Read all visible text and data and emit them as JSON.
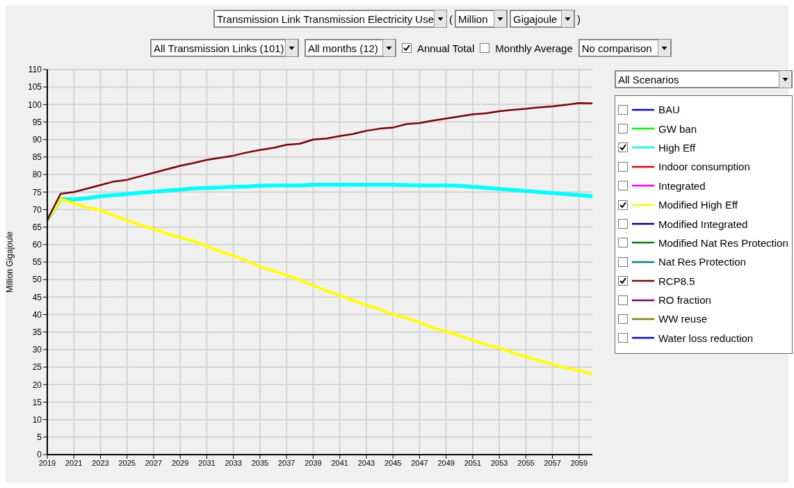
{
  "chart_data": {
    "type": "line",
    "title": "Transmission Link Transmission Electricity Use",
    "ylabel": "Million Gigajoule",
    "annotations": [
      "(",
      "Million",
      "Gigajoule",
      ")",
      "All Transmission Links (101)",
      "All months (12)",
      "Annual Total",
      "Monthly Average",
      "No comparison",
      "All Scenarios"
    ],
    "x": [
      2019,
      2020,
      2021,
      2022,
      2023,
      2024,
      2025,
      2026,
      2027,
      2028,
      2029,
      2030,
      2031,
      2032,
      2033,
      2034,
      2035,
      2036,
      2037,
      2038,
      2039,
      2040,
      2041,
      2042,
      2043,
      2044,
      2045,
      2046,
      2047,
      2048,
      2049,
      2050,
      2051,
      2052,
      2053,
      2054,
      2055,
      2056,
      2057,
      2058,
      2059,
      2060
    ],
    "xlim": [
      2019,
      2060
    ],
    "xticks": [
      2019,
      2021,
      2023,
      2025,
      2027,
      2029,
      2031,
      2033,
      2035,
      2037,
      2039,
      2041,
      2043,
      2045,
      2047,
      2049,
      2051,
      2053,
      2055,
      2057,
      2059
    ],
    "ylim": [
      0,
      110
    ],
    "yticks": [
      0,
      5,
      10,
      15,
      20,
      25,
      30,
      35,
      40,
      45,
      50,
      55,
      60,
      65,
      70,
      75,
      80,
      85,
      90,
      95,
      100,
      105,
      110
    ],
    "grid": true,
    "legend": "right",
    "marker": "none",
    "line_style": "solid",
    "series": [
      {
        "name": "BAU",
        "color": "#0000ff",
        "values": [
          null,
          null,
          null,
          null,
          null,
          null,
          null,
          null,
          null,
          null,
          null,
          null,
          null,
          null,
          null,
          null,
          null,
          null,
          null,
          null,
          null,
          null,
          null,
          null,
          null,
          null,
          null,
          null,
          null,
          null,
          null,
          null,
          null,
          null,
          null,
          null,
          null,
          null,
          null,
          null,
          null,
          null
        ]
      },
      {
        "name": "GW ban",
        "color": "#00ff00",
        "values": [
          null,
          null,
          null,
          null,
          null,
          null,
          null,
          null,
          null,
          null,
          null,
          null,
          null,
          null,
          null,
          null,
          null,
          null,
          null,
          null,
          null,
          null,
          null,
          null,
          null,
          null,
          null,
          null,
          null,
          null,
          null,
          null,
          null,
          null,
          null,
          null,
          null,
          null,
          null,
          null,
          null,
          null
        ]
      },
      {
        "name": "High Eff",
        "color": "#00ffff",
        "values": [
          67,
          73,
          72.9,
          73.2,
          73.8,
          74.1,
          74.4,
          74.8,
          75.1,
          75.4,
          75.7,
          76,
          76.2,
          76.3,
          76.5,
          76.6,
          76.8,
          76.9,
          76.9,
          76.9,
          77.1,
          77.1,
          77.1,
          77.1,
          77.1,
          77.1,
          77.1,
          77,
          76.9,
          76.9,
          76.9,
          76.8,
          76.5,
          76.2,
          75.9,
          75.6,
          75.3,
          75,
          74.7,
          74.4,
          74.1,
          73.8
        ]
      },
      {
        "name": "Indoor consumption",
        "color": "#ff0000",
        "values": [
          null,
          null,
          null,
          null,
          null,
          null,
          null,
          null,
          null,
          null,
          null,
          null,
          null,
          null,
          null,
          null,
          null,
          null,
          null,
          null,
          null,
          null,
          null,
          null,
          null,
          null,
          null,
          null,
          null,
          null,
          null,
          null,
          null,
          null,
          null,
          null,
          null,
          null,
          null,
          null,
          null,
          null
        ]
      },
      {
        "name": "Integrated",
        "color": "#ff00ff",
        "values": [
          null,
          null,
          null,
          null,
          null,
          null,
          null,
          null,
          null,
          null,
          null,
          null,
          null,
          null,
          null,
          null,
          null,
          null,
          null,
          null,
          null,
          null,
          null,
          null,
          null,
          null,
          null,
          null,
          null,
          null,
          null,
          null,
          null,
          null,
          null,
          null,
          null,
          null,
          null,
          null,
          null,
          null
        ]
      },
      {
        "name": "Modified High Eff",
        "color": "#ffff00",
        "values": [
          67,
          73,
          71.8,
          70.6,
          69.8,
          68.3,
          66.9,
          65.6,
          64.4,
          63.1,
          62,
          61,
          59.6,
          58,
          56.8,
          55.3,
          53.7,
          52.5,
          51.2,
          49.8,
          48.3,
          46.8,
          45.5,
          44,
          42.7,
          41.5,
          40,
          39,
          37.8,
          36.2,
          35.2,
          34,
          32.7,
          31.4,
          30.5,
          29.1,
          28,
          26.8,
          25.8,
          24.7,
          24,
          23
        ]
      },
      {
        "name": "Modified Integrated",
        "color": "#000080",
        "values": [
          null,
          null,
          null,
          null,
          null,
          null,
          null,
          null,
          null,
          null,
          null,
          null,
          null,
          null,
          null,
          null,
          null,
          null,
          null,
          null,
          null,
          null,
          null,
          null,
          null,
          null,
          null,
          null,
          null,
          null,
          null,
          null,
          null,
          null,
          null,
          null,
          null,
          null,
          null,
          null,
          null,
          null
        ]
      },
      {
        "name": "Modified Nat Res Protection",
        "color": "#008000",
        "values": [
          null,
          null,
          null,
          null,
          null,
          null,
          null,
          null,
          null,
          null,
          null,
          null,
          null,
          null,
          null,
          null,
          null,
          null,
          null,
          null,
          null,
          null,
          null,
          null,
          null,
          null,
          null,
          null,
          null,
          null,
          null,
          null,
          null,
          null,
          null,
          null,
          null,
          null,
          null,
          null,
          null,
          null
        ]
      },
      {
        "name": "Nat Res Protection",
        "color": "#008080",
        "values": [
          null,
          null,
          null,
          null,
          null,
          null,
          null,
          null,
          null,
          null,
          null,
          null,
          null,
          null,
          null,
          null,
          null,
          null,
          null,
          null,
          null,
          null,
          null,
          null,
          null,
          null,
          null,
          null,
          null,
          null,
          null,
          null,
          null,
          null,
          null,
          null,
          null,
          null,
          null,
          null,
          null,
          null
        ]
      },
      {
        "name": "RCP8.5",
        "color": "#800000",
        "values": [
          67,
          74.5,
          75,
          76,
          77,
          78,
          78.5,
          79.5,
          80.5,
          81.5,
          82.5,
          83.3,
          84.2,
          84.8,
          85.4,
          86.3,
          87,
          87.6,
          88.5,
          88.8,
          90,
          90.3,
          91,
          91.6,
          92.5,
          93.1,
          93.4,
          94.4,
          94.7,
          95.4,
          96,
          96.6,
          97.2,
          97.5,
          98.1,
          98.5,
          98.8,
          99.2,
          99.5,
          99.9,
          100.4,
          100.3
        ]
      },
      {
        "name": "RO fraction",
        "color": "#800080",
        "values": [
          null,
          null,
          null,
          null,
          null,
          null,
          null,
          null,
          null,
          null,
          null,
          null,
          null,
          null,
          null,
          null,
          null,
          null,
          null,
          null,
          null,
          null,
          null,
          null,
          null,
          null,
          null,
          null,
          null,
          null,
          null,
          null,
          null,
          null,
          null,
          null,
          null,
          null,
          null,
          null,
          null,
          null
        ]
      },
      {
        "name": "WW reuse",
        "color": "#808000",
        "values": [
          null,
          null,
          null,
          null,
          null,
          null,
          null,
          null,
          null,
          null,
          null,
          null,
          null,
          null,
          null,
          null,
          null,
          null,
          null,
          null,
          null,
          null,
          null,
          null,
          null,
          null,
          null,
          null,
          null,
          null,
          null,
          null,
          null,
          null,
          null,
          null,
          null,
          null,
          null,
          null,
          null,
          null
        ]
      },
      {
        "name": "Water loss reduction",
        "color": "#0000ff",
        "values": [
          null,
          null,
          null,
          null,
          null,
          null,
          null,
          null,
          null,
          null,
          null,
          null,
          null,
          null,
          null,
          null,
          null,
          null,
          null,
          null,
          null,
          null,
          null,
          null,
          null,
          null,
          null,
          null,
          null,
          null,
          null,
          null,
          null,
          null,
          null,
          null,
          null,
          null,
          null,
          null,
          null,
          null
        ]
      }
    ]
  }
}
